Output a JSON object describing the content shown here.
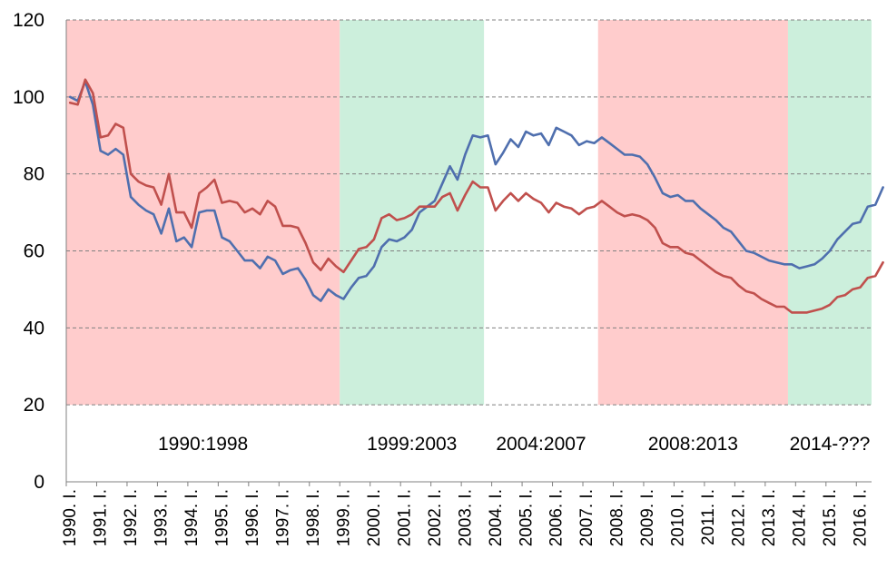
{
  "chart_data": {
    "type": "line",
    "title": "",
    "xlabel": "",
    "ylabel": "",
    "ylim": [
      0,
      120
    ],
    "yticks": [
      0,
      20,
      40,
      60,
      80,
      100,
      120
    ],
    "grid": "horizontal dashed",
    "legend": "none",
    "x_labels": [
      "1990. I.",
      "1991. I.",
      "1992. I.",
      "1993. I.",
      "1994. I.",
      "1995. I.",
      "1996. I.",
      "1997. I.",
      "1998. I.",
      "1999. I.",
      "2000. I.",
      "2001. I.",
      "2002. I.",
      "2003. I.",
      "2004. I.",
      "2005. I.",
      "2006. I.",
      "2007. I.",
      "2008. I.",
      "2009. I.",
      "2010. I.",
      "2011. I.",
      "2012. I.",
      "2013. I.",
      "2014. I.",
      "2015. I.",
      "2016. I."
    ],
    "periods": [
      {
        "label": "1990:1998",
        "start_quarter": 0,
        "end_quarter": 36,
        "color": "#ffcccc"
      },
      {
        "label": "1999:2003",
        "start_quarter": 36,
        "end_quarter": 55,
        "color": "#ccefdc"
      },
      {
        "label": "2004:2007",
        "start_quarter": 55,
        "end_quarter": 70,
        "color": "#ffffff"
      },
      {
        "label": "2008:2013",
        "start_quarter": 70,
        "end_quarter": 95,
        "color": "#ffcccc"
      },
      {
        "label": "2014-???",
        "start_quarter": 95,
        "end_quarter": 106,
        "color": "#ccefdc"
      }
    ],
    "series": [
      {
        "color": "#4f6fae",
        "values": [
          100,
          99,
          104,
          98,
          86,
          85,
          86.5,
          85,
          74,
          72,
          70.5,
          69.5,
          64.5,
          71,
          62.5,
          63.5,
          61,
          70,
          70.5,
          70.5,
          63.5,
          62.5,
          60,
          57.5,
          57.5,
          55.5,
          58.5,
          57.5,
          54,
          55,
          55.5,
          52.5,
          48.5,
          47,
          50,
          48.5,
          47.5,
          50.5,
          53,
          53.5,
          56,
          61,
          63,
          62.5,
          63.5,
          65.5,
          70,
          71.5,
          73,
          77.5,
          82,
          78.5,
          85,
          90,
          89.5,
          90,
          82.5,
          85.5,
          89,
          87,
          91,
          90,
          90.5,
          87.5,
          92,
          91,
          90,
          87.5,
          88.5,
          88,
          89.5,
          88,
          86.5,
          85,
          85,
          84.5,
          82.5,
          79,
          75,
          74,
          74.5,
          73,
          73,
          71,
          69.5,
          68,
          66,
          65,
          62.5,
          60,
          59.5,
          58.5,
          57.5,
          57,
          56.5,
          56.5,
          55.5,
          56,
          56.5,
          58,
          60,
          63,
          65,
          67,
          67.5,
          71.5,
          72,
          76.5
        ]
      },
      {
        "color": "#c0504d",
        "values": [
          98.5,
          98,
          104.5,
          101,
          89.5,
          90,
          93,
          92,
          80,
          78,
          77,
          76.5,
          72,
          80,
          70,
          70,
          66,
          75,
          76.5,
          78.5,
          72.5,
          73,
          72.5,
          70,
          71,
          69.5,
          73,
          71.5,
          66.5,
          66.5,
          66,
          62,
          57,
          55,
          58,
          56,
          54.5,
          57.5,
          60.5,
          61,
          63,
          68.5,
          69.5,
          68,
          68.5,
          69.5,
          71.5,
          71.5,
          71.5,
          74,
          75,
          70.5,
          74.5,
          78,
          76.5,
          76.5,
          70.5,
          73,
          75,
          73,
          75,
          73.5,
          72.5,
          70,
          72.5,
          71.5,
          71,
          69.5,
          71,
          71.5,
          73,
          71.5,
          70,
          69,
          69.5,
          69,
          68,
          66,
          62,
          61,
          61,
          59.5,
          59,
          57.5,
          56,
          54.5,
          53.5,
          53,
          51,
          49.5,
          49,
          47.5,
          46.5,
          45.5,
          45.5,
          44,
          44,
          44,
          44.5,
          45,
          46,
          48,
          48.5,
          50,
          50.5,
          53,
          53.5,
          57
        ]
      }
    ]
  }
}
